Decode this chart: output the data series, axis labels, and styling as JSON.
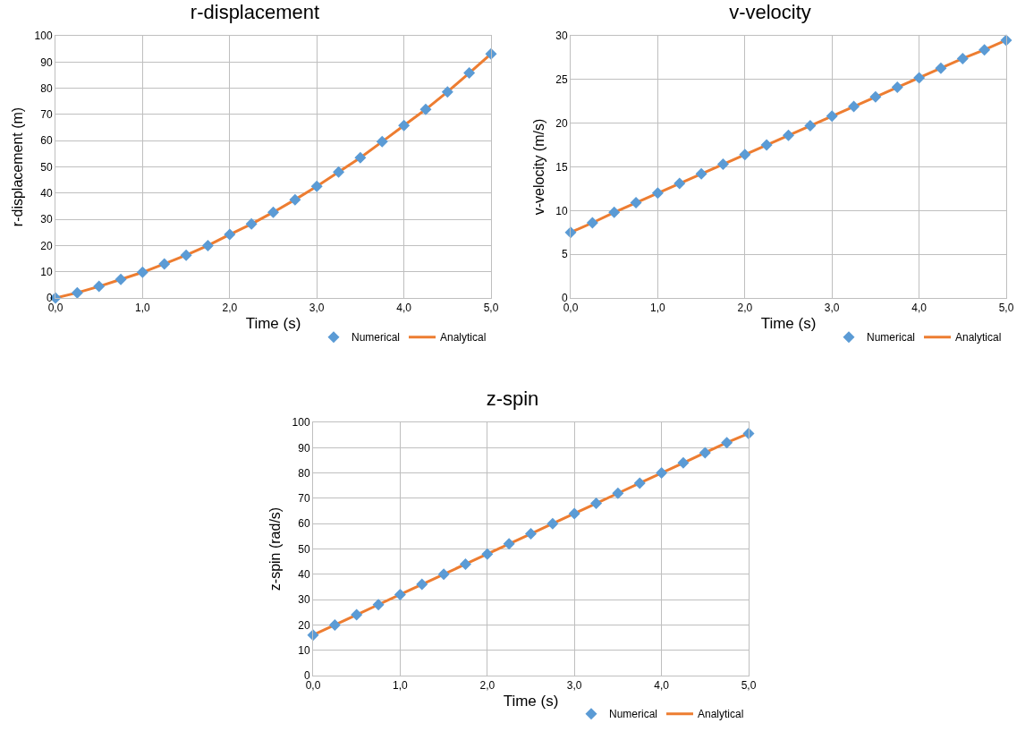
{
  "chart_data": [
    {
      "type": "line",
      "title": "r-displacement",
      "xlabel": "Time (s)",
      "ylabel": "r-displacement (m)",
      "x": [
        0,
        0.25,
        0.5,
        0.75,
        1,
        1.25,
        1.5,
        1.75,
        2,
        2.25,
        2.5,
        2.75,
        3,
        3.25,
        3.5,
        3.75,
        4,
        4.25,
        4.5,
        4.75,
        5
      ],
      "series": [
        {
          "name": "Numerical",
          "type": "scatter",
          "marker": "diamond",
          "color": "#5b9bd5",
          "values": [
            0,
            2,
            4.4,
            7.1,
            9.8,
            13,
            16.3,
            20,
            24.2,
            28.2,
            32.7,
            37.5,
            42.6,
            48,
            53.5,
            59.6,
            65.8,
            71.9,
            78.6,
            85.8,
            93.1
          ]
        },
        {
          "name": "Analytical",
          "type": "line",
          "line_style": "solid",
          "color": "#ed7d31",
          "values": [
            0,
            2,
            4.4,
            7.1,
            9.8,
            13,
            16.3,
            20,
            24.2,
            28.2,
            32.7,
            37.5,
            42.6,
            48,
            53.5,
            59.6,
            65.8,
            71.9,
            78.6,
            85.8,
            93.1
          ]
        }
      ],
      "xlim": [
        0,
        5
      ],
      "xticks": [
        {
          "value": 0,
          "label": "0,0"
        },
        {
          "value": 1,
          "label": "1,0"
        },
        {
          "value": 2,
          "label": "2,0"
        },
        {
          "value": 3,
          "label": "3,0"
        },
        {
          "value": 4,
          "label": "4,0"
        },
        {
          "value": 5,
          "label": "5,0"
        }
      ],
      "ylim": [
        0,
        100
      ],
      "yticks": [
        0,
        10,
        20,
        30,
        40,
        50,
        60,
        70,
        80,
        90,
        100
      ],
      "grid": true,
      "legend": "bottom right"
    },
    {
      "type": "line",
      "title": "v-velocity",
      "xlabel": "Time (s)",
      "ylabel": "v-velocity (m/s)",
      "x": [
        0,
        0.25,
        0.5,
        0.75,
        1,
        1.25,
        1.5,
        1.75,
        2,
        2.25,
        2.5,
        2.75,
        3,
        3.25,
        3.5,
        3.75,
        4,
        4.25,
        4.5,
        4.75,
        5
      ],
      "series": [
        {
          "name": "Numerical",
          "type": "scatter",
          "marker": "diamond",
          "color": "#5b9bd5",
          "values": [
            7.5,
            8.6,
            9.8,
            10.9,
            12,
            13.1,
            14.2,
            15.3,
            16.4,
            17.5,
            18.6,
            19.7,
            20.8,
            21.9,
            23,
            24.1,
            25.2,
            26.3,
            27.4,
            28.4,
            29.5
          ]
        },
        {
          "name": "Analytical",
          "type": "line",
          "line_style": "solid",
          "color": "#ed7d31",
          "values": [
            7.5,
            8.6,
            9.8,
            10.9,
            12,
            13.1,
            14.2,
            15.3,
            16.4,
            17.5,
            18.6,
            19.7,
            20.8,
            21.9,
            23,
            24.1,
            25.2,
            26.3,
            27.4,
            28.4,
            29.5
          ]
        }
      ],
      "xlim": [
        0,
        5
      ],
      "xticks": [
        {
          "value": 0,
          "label": "0,0"
        },
        {
          "value": 1,
          "label": "1,0"
        },
        {
          "value": 2,
          "label": "2,0"
        },
        {
          "value": 3,
          "label": "3,0"
        },
        {
          "value": 4,
          "label": "4,0"
        },
        {
          "value": 5,
          "label": "5,0"
        }
      ],
      "ylim": [
        0,
        30
      ],
      "yticks": [
        0,
        5,
        10,
        15,
        20,
        25,
        30
      ],
      "grid": true,
      "legend": "bottom right"
    },
    {
      "type": "line",
      "title": "z-spin",
      "xlabel": "Time (s)",
      "ylabel": "z-spin (rad/s)",
      "x": [
        0,
        0.25,
        0.5,
        0.75,
        1,
        1.25,
        1.5,
        1.75,
        2,
        2.25,
        2.5,
        2.75,
        3,
        3.25,
        3.5,
        3.75,
        4,
        4.25,
        4.5,
        4.75,
        5
      ],
      "series": [
        {
          "name": "Numerical",
          "type": "scatter",
          "marker": "diamond",
          "color": "#5b9bd5",
          "values": [
            16,
            20,
            24,
            28,
            32,
            36,
            40,
            44,
            48,
            52,
            56,
            60,
            64,
            68,
            72,
            76,
            80,
            84,
            88,
            92,
            95.6
          ]
        },
        {
          "name": "Analytical",
          "type": "line",
          "line_style": "solid",
          "color": "#ed7d31",
          "values": [
            16,
            20,
            24,
            28,
            32,
            36,
            40,
            44,
            48,
            52,
            56,
            60,
            64,
            68,
            72,
            76,
            80,
            84,
            88,
            92,
            95.6
          ]
        }
      ],
      "xlim": [
        0,
        5
      ],
      "xticks": [
        {
          "value": 0,
          "label": "0,0"
        },
        {
          "value": 1,
          "label": "1,0"
        },
        {
          "value": 2,
          "label": "2,0"
        },
        {
          "value": 3,
          "label": "3,0"
        },
        {
          "value": 4,
          "label": "4,0"
        },
        {
          "value": 5,
          "label": "5,0"
        }
      ],
      "ylim": [
        0,
        100
      ],
      "yticks": [
        0,
        10,
        20,
        30,
        40,
        50,
        60,
        70,
        80,
        90,
        100
      ],
      "grid": true,
      "legend": "bottom right"
    }
  ]
}
